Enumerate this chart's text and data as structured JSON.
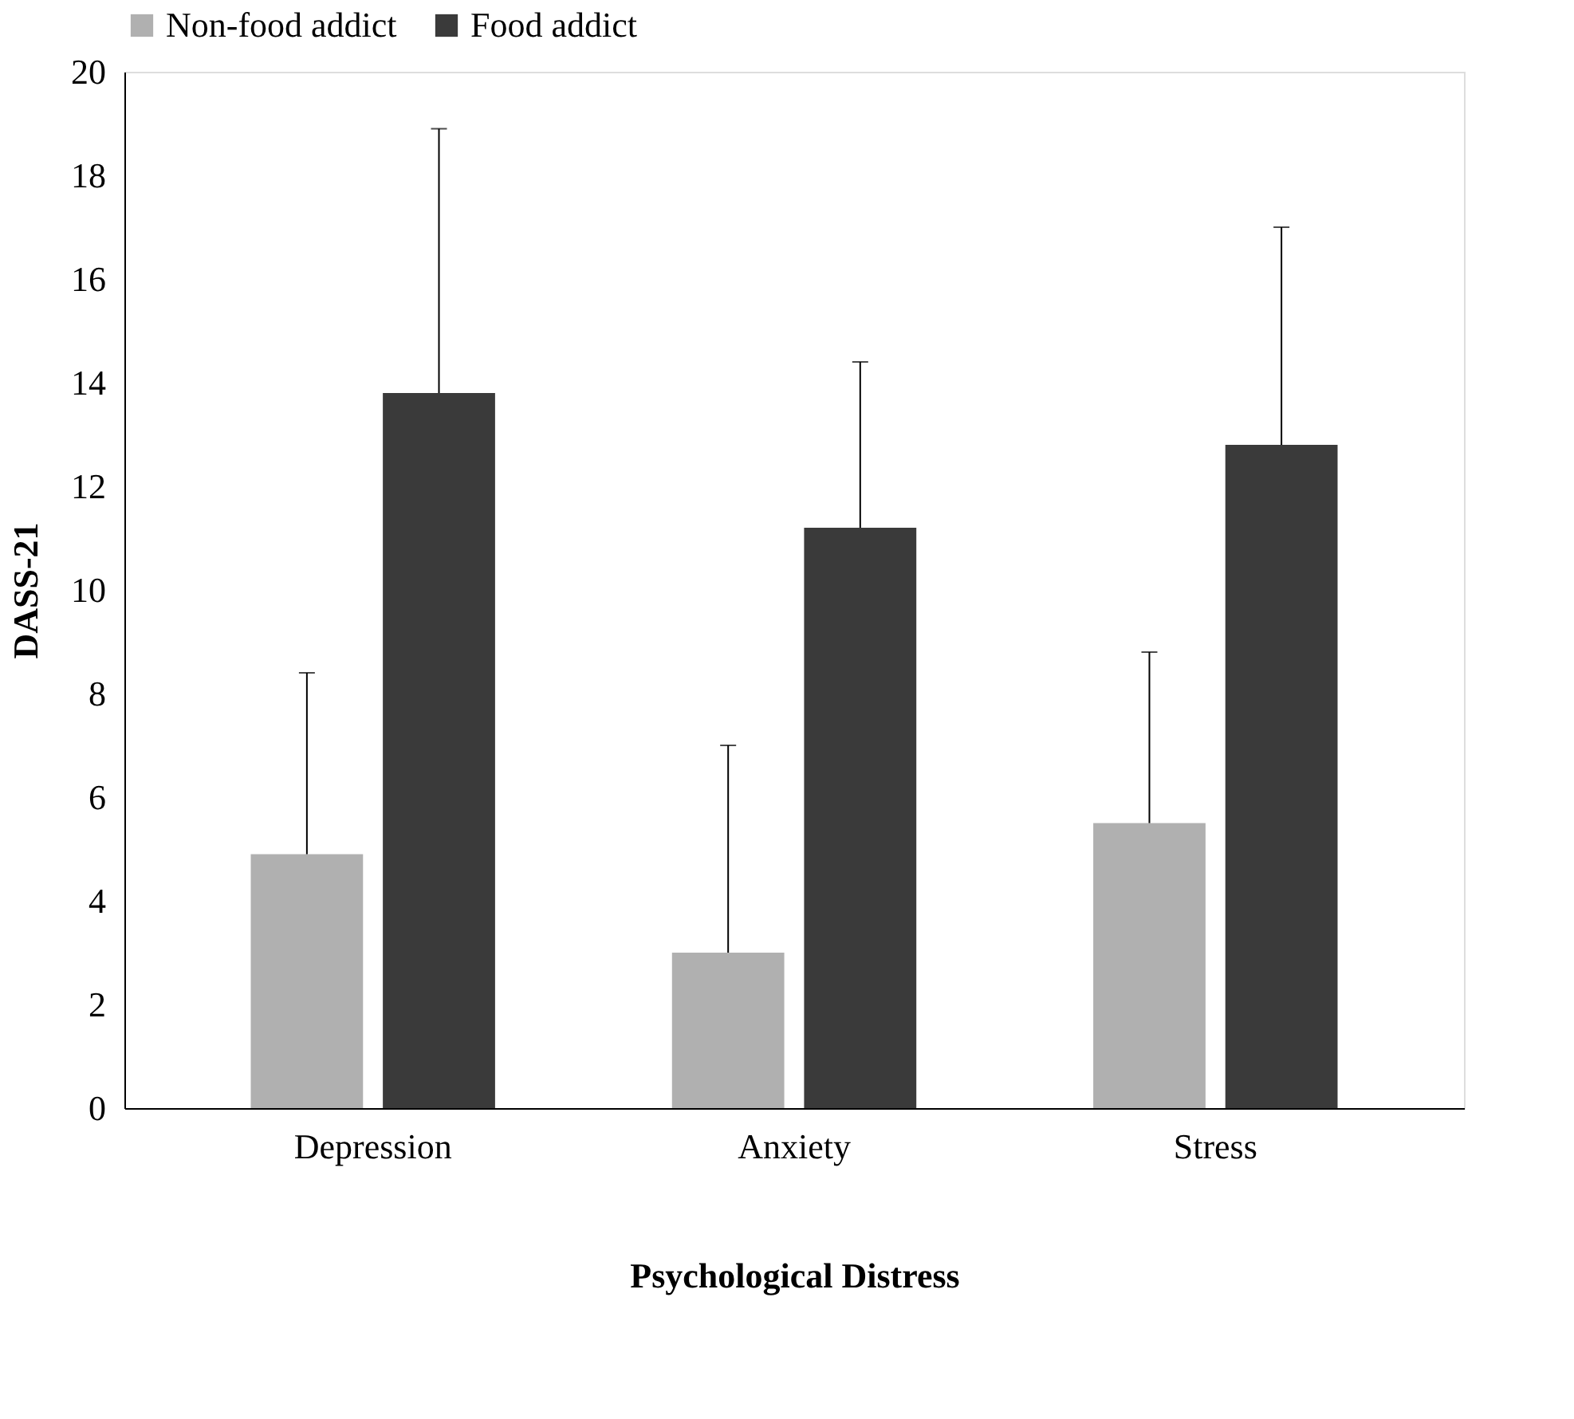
{
  "chart_data": {
    "type": "bar",
    "xlabel": "Psychological Distress",
    "ylabel": "DASS-21",
    "categories": [
      "Depression",
      "Anxiety",
      "Stress"
    ],
    "series": [
      {
        "name": "Non-food addict",
        "color": "#b0b0b0",
        "values": [
          4.9,
          3.0,
          5.5
        ],
        "errors": [
          [
            4.9,
            8.4
          ],
          [
            3.0,
            7.0
          ],
          [
            5.5,
            8.8
          ]
        ]
      },
      {
        "name": "Food addict",
        "color": "#3a3a3a",
        "values": [
          13.8,
          11.2,
          12.8
        ],
        "errors": [
          [
            13.8,
            18.9
          ],
          [
            11.2,
            14.4
          ],
          [
            12.8,
            17.0
          ]
        ]
      }
    ],
    "ylim": [
      0,
      20
    ],
    "yticks": [
      0,
      2,
      4,
      6,
      8,
      10,
      12,
      14,
      16,
      18,
      20
    ],
    "grid": false,
    "legend": "top"
  }
}
